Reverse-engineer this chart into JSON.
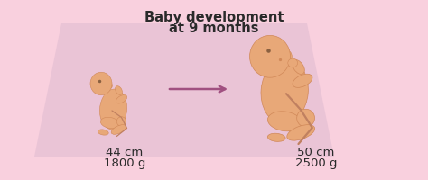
{
  "title_line1": "Baby development",
  "title_line2": "at 9 months",
  "bg_color": "#f9d0de",
  "panel_color": "#e8c2d5",
  "skin_color": "#e8a878",
  "skin_shadow": "#d08858",
  "skin_light": "#f0c090",
  "text_color": "#2a2a2a",
  "arrow_color": "#a05080",
  "left_cm": "44 cm",
  "left_g": "1800 g",
  "right_cm": "50 cm",
  "right_g": "2500 g",
  "title_fontsize": 10.5,
  "label_fontsize": 9.5
}
